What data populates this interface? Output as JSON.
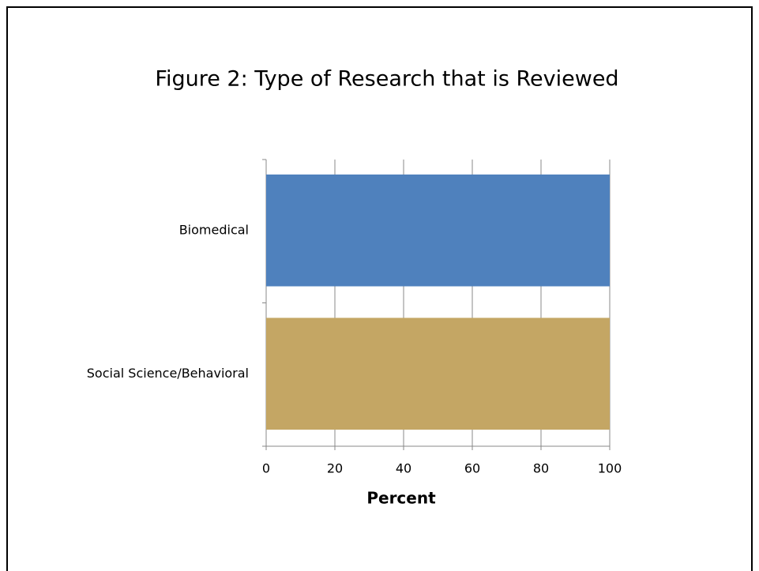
{
  "chart_data": {
    "type": "hbar",
    "title": "Figure 2: Type of Research that is Reviewed",
    "categories": [
      "Biomedical",
      "Social Science/Behavioral"
    ],
    "values": [
      100,
      100
    ],
    "colors": [
      "#4f81bd",
      "#c4a664"
    ],
    "x_label": "Percent",
    "xlim": [
      0,
      100
    ],
    "xticks": [
      0,
      20,
      40,
      60,
      80,
      100
    ],
    "grid": true
  }
}
